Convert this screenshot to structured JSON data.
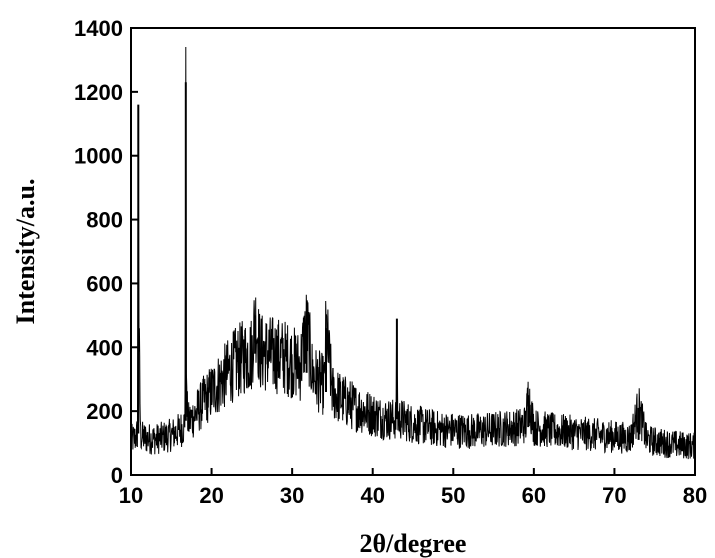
{
  "chart_data": {
    "type": "line",
    "title": "",
    "xlabel": "2θ/degree",
    "ylabel": "Intensity/a.u.",
    "xlim": [
      10,
      80
    ],
    "ylim": [
      0,
      1400
    ],
    "xticks": [
      10,
      20,
      30,
      40,
      50,
      60,
      70,
      80
    ],
    "yticks": [
      0,
      200,
      400,
      600,
      800,
      1000,
      1200,
      1400
    ],
    "xtick_labels": [
      "10",
      "20",
      "30",
      "40",
      "50",
      "60",
      "70",
      "80"
    ],
    "ytick_labels": [
      "0",
      "200",
      "400",
      "600",
      "800",
      "1000",
      "1200",
      "1400"
    ],
    "grid": false,
    "series": [
      {
        "color": "#000000",
        "x": [
          10,
          10.5,
          10.8,
          10.9,
          11.0,
          11.2,
          12,
          13,
          14,
          15,
          16,
          16.5,
          16.7,
          16.8,
          16.9,
          17.1,
          18,
          19,
          20,
          21,
          22,
          23,
          24,
          25,
          25.4,
          26,
          27,
          28,
          29,
          30,
          31,
          31.8,
          32.5,
          33,
          34,
          34.2,
          35,
          36,
          37,
          38,
          39,
          40,
          41,
          42,
          42.9,
          43.0,
          43.1,
          44,
          45,
          46,
          47,
          48,
          49,
          50,
          52,
          54,
          56,
          58,
          59,
          59.3,
          60,
          62,
          64,
          66,
          68,
          70,
          72,
          73,
          74,
          76,
          78,
          80
        ],
        "y": [
          110,
          115,
          130,
          1160,
          420,
          120,
          115,
          112,
          118,
          125,
          140,
          150,
          170,
          1230,
          220,
          165,
          190,
          230,
          260,
          290,
          320,
          350,
          370,
          380,
          500,
          385,
          380,
          375,
          370,
          355,
          340,
          470,
          320,
          300,
          280,
          460,
          260,
          240,
          225,
          210,
          200,
          190,
          180,
          175,
          175,
          490,
          180,
          170,
          160,
          155,
          150,
          145,
          142,
          140,
          138,
          140,
          145,
          150,
          160,
          250,
          150,
          140,
          135,
          130,
          125,
          120,
          115,
          210,
          110,
          100,
          95,
          90
        ]
      }
    ]
  }
}
